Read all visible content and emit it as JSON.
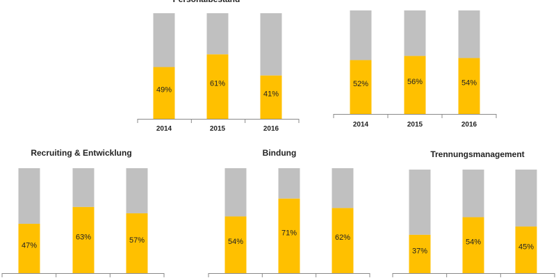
{
  "colors": {
    "filled": "#FFC000",
    "remainder": "#C0C0C0",
    "axis": "#888888"
  },
  "chart_data": [
    {
      "type": "bar",
      "stacked_to": 100,
      "title": "Personalbestand",
      "categories": [
        "2014",
        "2015",
        "2016"
      ],
      "values": [
        49,
        61,
        41
      ],
      "value_labels": [
        "49%",
        "61%",
        "41%"
      ],
      "ylim": [
        0,
        100
      ],
      "grid": false,
      "legend": "none"
    },
    {
      "type": "bar",
      "stacked_to": 100,
      "title": "",
      "categories": [
        "2014",
        "2015",
        "2016"
      ],
      "values": [
        52,
        56,
        54
      ],
      "value_labels": [
        "52%",
        "56%",
        "54%"
      ],
      "ylim": [
        0,
        100
      ],
      "grid": false,
      "legend": "none"
    },
    {
      "type": "bar",
      "stacked_to": 100,
      "title": "Recruiting & Entwicklung",
      "categories": [
        "",
        "",
        ""
      ],
      "values": [
        47,
        63,
        57
      ],
      "value_labels": [
        "47%",
        "63%",
        "57%"
      ],
      "ylim": [
        0,
        100
      ],
      "grid": false,
      "legend": "none"
    },
    {
      "type": "bar",
      "stacked_to": 100,
      "title": "Bindung",
      "categories": [
        "",
        "",
        ""
      ],
      "values": [
        54,
        71,
        62
      ],
      "value_labels": [
        "54%",
        "71%",
        "62%"
      ],
      "ylim": [
        0,
        100
      ],
      "grid": false,
      "legend": "none"
    },
    {
      "type": "bar",
      "stacked_to": 100,
      "title": "Trennungsmanagement",
      "categories": [
        "",
        "",
        ""
      ],
      "values": [
        37,
        54,
        45
      ],
      "value_labels": [
        "37%",
        "54%",
        "45%"
      ],
      "ylim": [
        0,
        100
      ],
      "grid": false,
      "legend": "none"
    }
  ]
}
